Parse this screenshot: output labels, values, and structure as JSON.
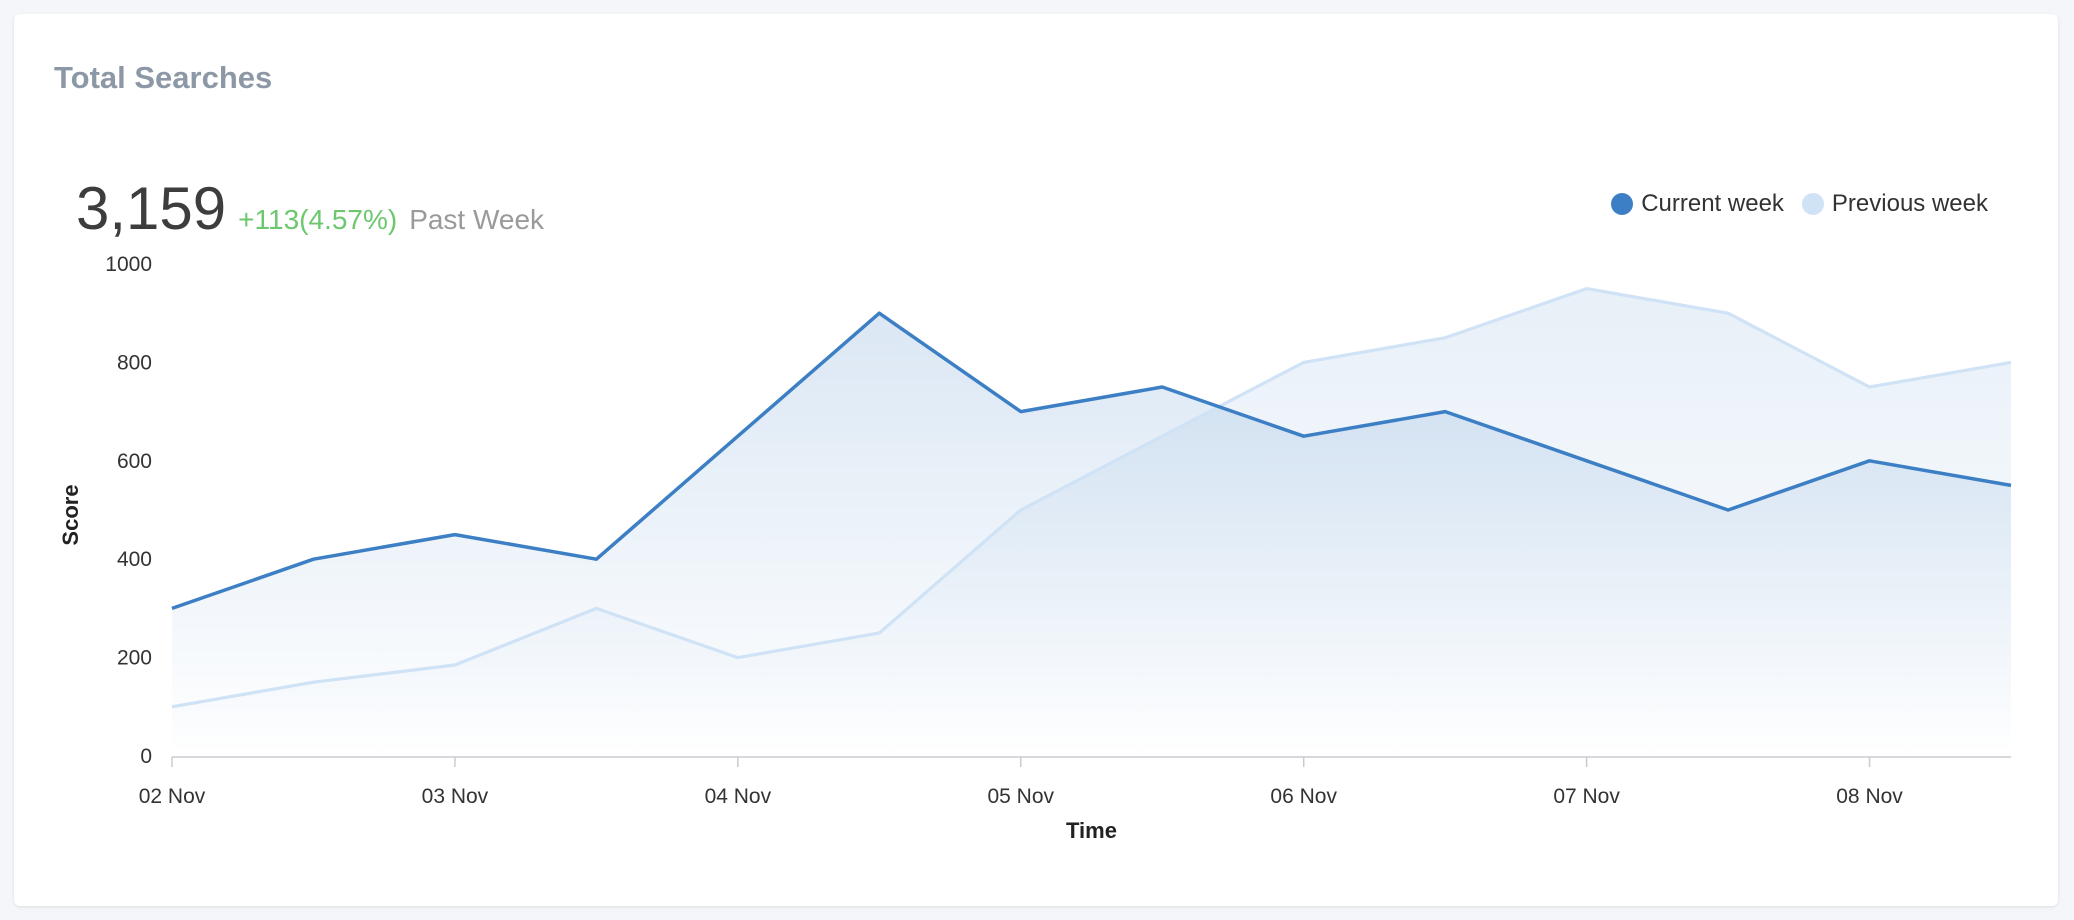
{
  "card": {
    "title": "Total Searches"
  },
  "summary": {
    "value": "3,159",
    "delta": "+113(4.57%)",
    "period": "Past Week"
  },
  "colors": {
    "current": "#3d7fc4",
    "previous": "#cfe2f6",
    "delta": "#6cc76f",
    "title": "#8d98a7"
  },
  "chart_data": {
    "type": "area",
    "title": "",
    "xlabel": "Time",
    "ylabel": "Score",
    "ylim": [
      0,
      1000
    ],
    "yticks": [
      0,
      200,
      400,
      600,
      800,
      1000
    ],
    "x_tick_labels": [
      "02 Nov",
      "03 Nov",
      "04 Nov",
      "05 Nov",
      "06 Nov",
      "07 Nov",
      "08 Nov"
    ],
    "x_range": [
      0,
      6.5
    ],
    "legend_position": "top-right",
    "grid": false,
    "series": [
      {
        "name": "Current week",
        "color": "#3d7fc4",
        "x": [
          0,
          0.5,
          1,
          1.5,
          2,
          2.5,
          3,
          3.5,
          4,
          4.5,
          5,
          5.5,
          6,
          6.5
        ],
        "values": [
          300,
          400,
          450,
          400,
          650,
          900,
          700,
          750,
          650,
          700,
          600,
          500,
          600,
          550
        ]
      },
      {
        "name": "Previous week",
        "color": "#cfe2f6",
        "x": [
          0,
          0.5,
          1,
          1.5,
          2,
          2.5,
          3,
          3.5,
          4,
          4.5,
          5,
          5.5,
          6,
          6.5
        ],
        "values": [
          100,
          150,
          185,
          300,
          200,
          250,
          500,
          650,
          800,
          850,
          950,
          900,
          750,
          800
        ]
      }
    ]
  }
}
